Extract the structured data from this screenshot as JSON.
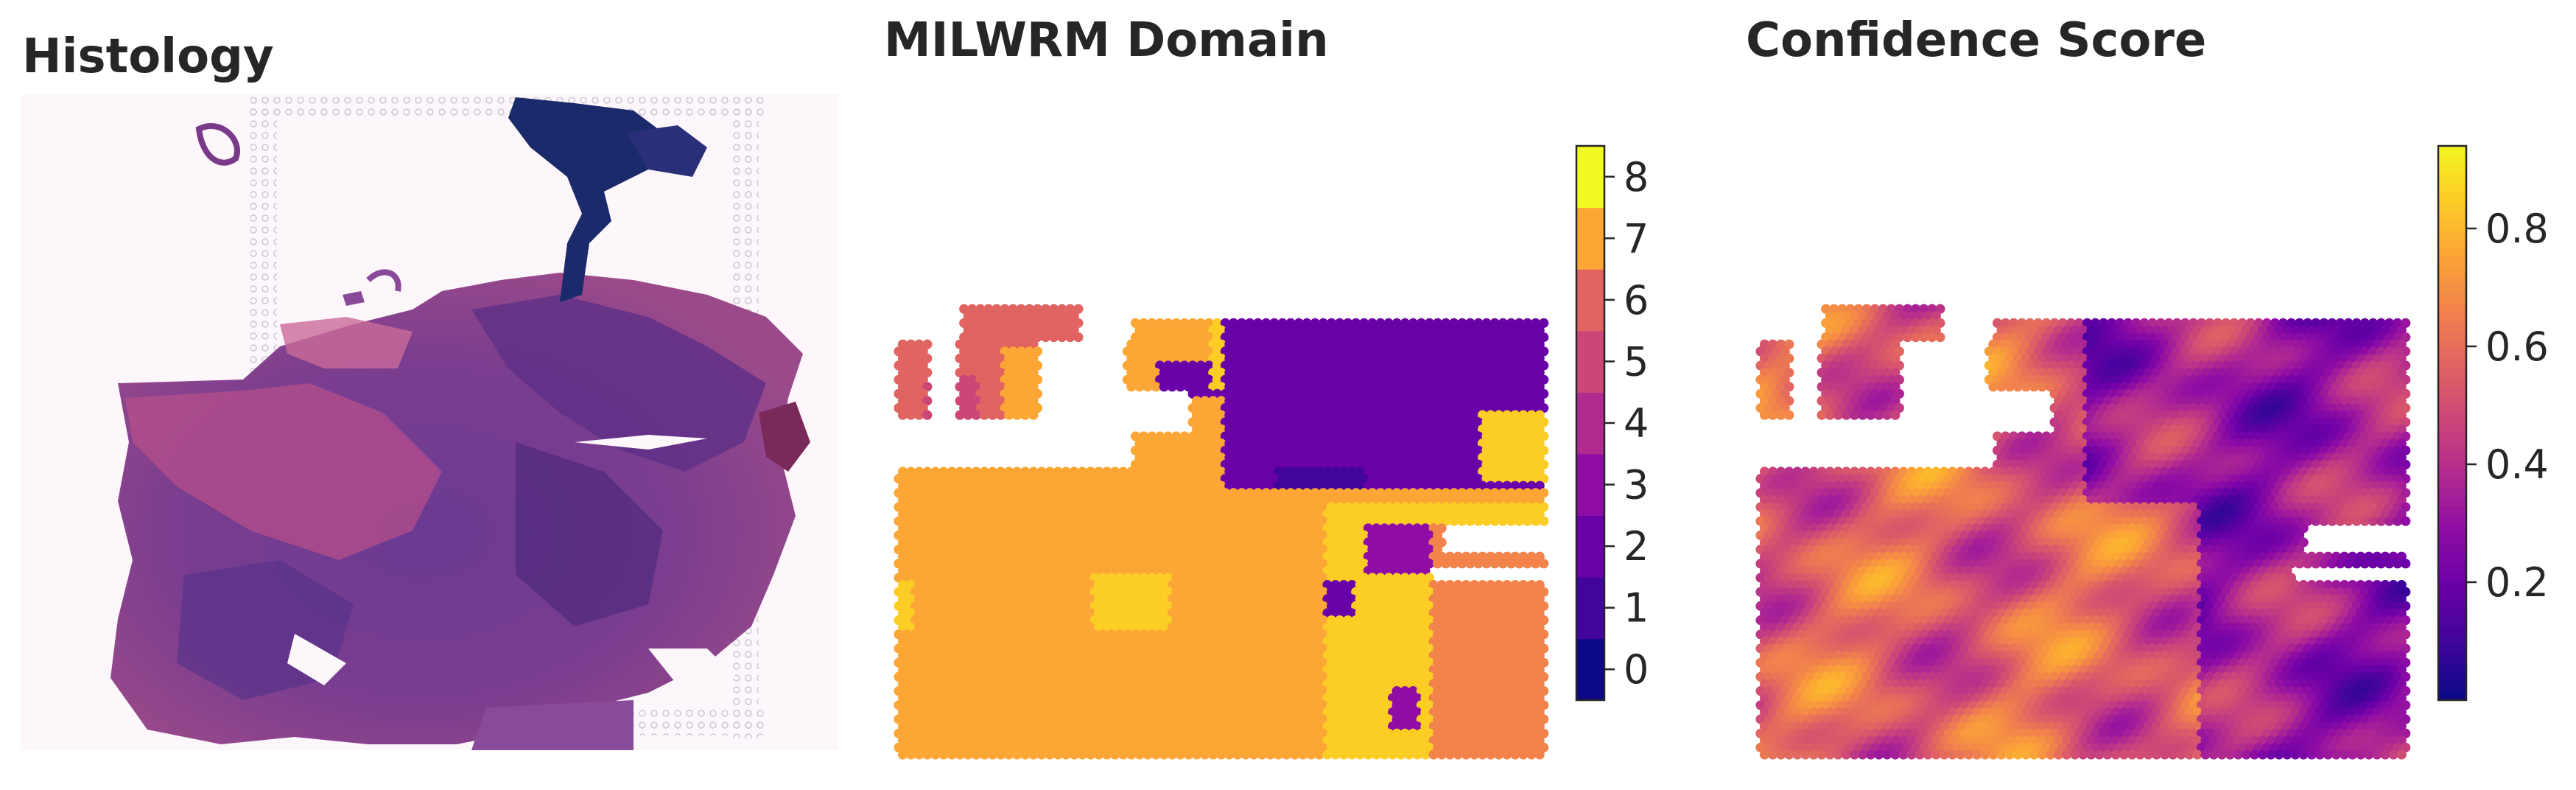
{
  "panels": {
    "histology": {
      "title": "Histology"
    },
    "domain": {
      "title": "MILWRM Domain"
    },
    "confidence": {
      "title": "Confidence Score"
    }
  },
  "chart_data": [
    {
      "type": "image",
      "title": "Histology"
    },
    {
      "type": "heatmap",
      "title": "MILWRM Domain",
      "colormap": "plasma (discrete, 9 levels)",
      "colorbar": {
        "ticks": [
          0,
          1,
          2,
          3,
          4,
          5,
          6,
          7,
          8
        ],
        "ticklabels": [
          "0",
          "1",
          "2",
          "3",
          "4",
          "5",
          "6",
          "7",
          "8"
        ],
        "range": [
          -0.5,
          8.5
        ],
        "colors": [
          "#0d0887",
          "#41049d",
          "#6a00a8",
          "#8f0da4",
          "#b12a90",
          "#cc4778",
          "#e16462",
          "#f2844b",
          "#fca636",
          "#fcce25",
          "#f0f921"
        ]
      }
    },
    {
      "type": "heatmap",
      "title": "Confidence Score",
      "colormap": "plasma (continuous)",
      "colorbar": {
        "ticks": [
          0.2,
          0.4,
          0.6,
          0.8
        ],
        "ticklabels": [
          "0.2",
          "0.4",
          "0.6",
          "0.8"
        ],
        "range": [
          0.0,
          0.94
        ]
      }
    }
  ],
  "colors": {
    "plasma": [
      "#0d0887",
      "#41049d",
      "#6a00a8",
      "#8f0da4",
      "#b12a90",
      "#cc4778",
      "#e16462",
      "#f2844b",
      "#fca636",
      "#fcce25",
      "#f0f921"
    ],
    "tissue_dark": "#5a2a82",
    "tissue_pink": "#c2507f",
    "tissue_navy": "#1a2a6b"
  }
}
